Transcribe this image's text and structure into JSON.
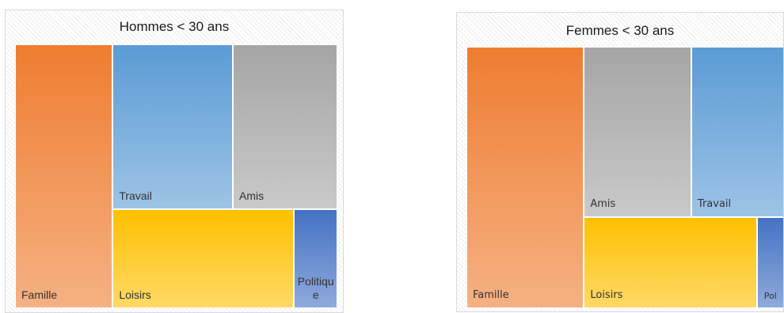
{
  "chart_data": [
    {
      "type": "treemap",
      "title": "Hommes < 30 ans",
      "items": [
        {
          "label": "Famille",
          "value": 30,
          "color": "#ee7d31"
        },
        {
          "label": "Travail",
          "value": 23,
          "color": "#5b9bd5"
        },
        {
          "label": "Amis",
          "value": 20,
          "color": "#a5a5a5"
        },
        {
          "label": "Loisirs",
          "value": 21,
          "color": "#ffc000"
        },
        {
          "label": "Politique",
          "value": 5,
          "color": "#4472c4"
        }
      ]
    },
    {
      "type": "treemap",
      "title": "Femmes < 30 ans",
      "items": [
        {
          "label": "Famille",
          "value": 37,
          "color": "#ee7d31"
        },
        {
          "label": "Amis",
          "value": 22,
          "color": "#a5a5a5"
        },
        {
          "label": "Travail",
          "value": 19,
          "color": "#5b9bd5"
        },
        {
          "label": "Loisirs",
          "value": 19,
          "color": "#ffc000"
        },
        {
          "label": "Pol",
          "value": 3,
          "color": "#4472c4"
        }
      ]
    }
  ]
}
